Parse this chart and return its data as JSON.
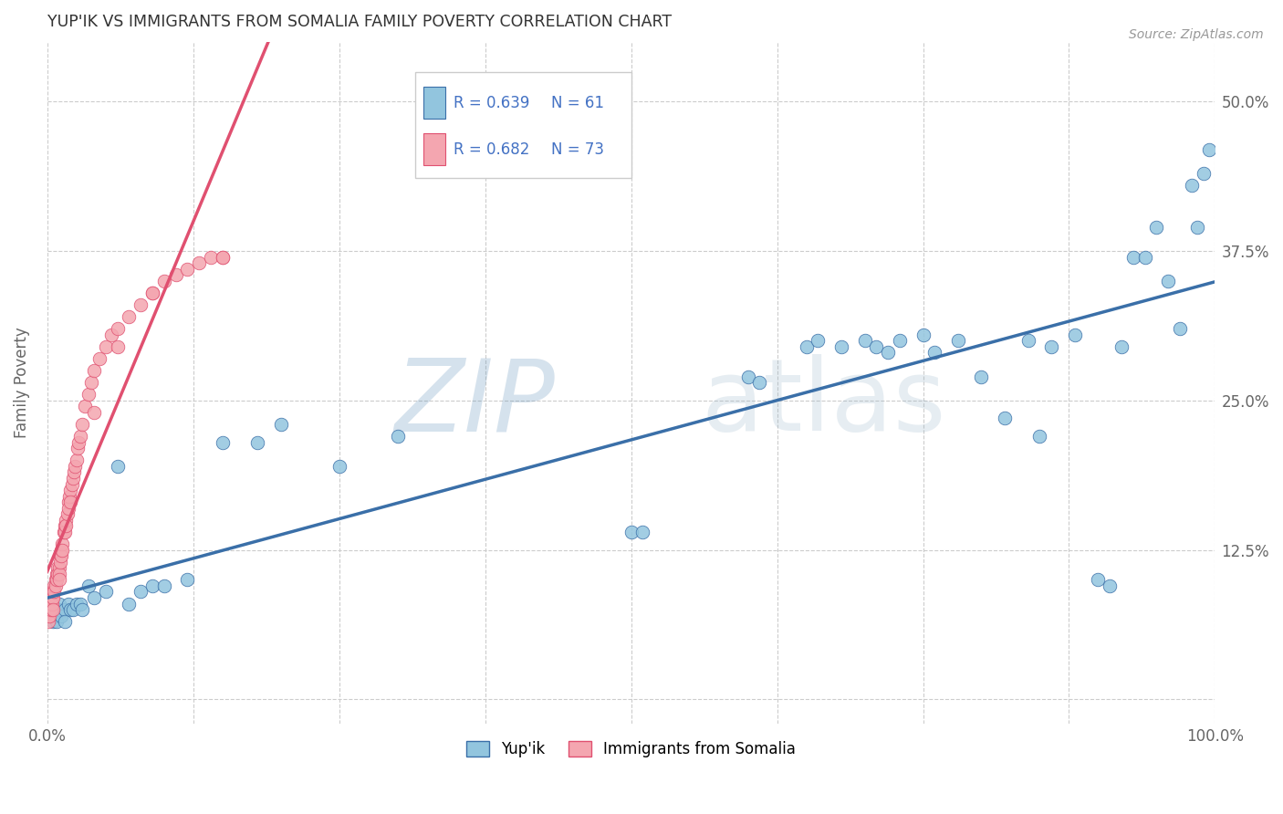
{
  "title": "YUP'IK VS IMMIGRANTS FROM SOMALIA FAMILY POVERTY CORRELATION CHART",
  "source": "Source: ZipAtlas.com",
  "ylabel": "Family Poverty",
  "xlim": [
    0,
    1.0
  ],
  "ylim": [
    -0.02,
    0.55
  ],
  "color_blue": "#92C5DE",
  "color_pink": "#F4A6B0",
  "color_blue_line": "#3A6FA8",
  "color_pink_line": "#E05070",
  "color_text_blue": "#4472C4",
  "legend_label_blue": "Yup'ik",
  "legend_label_pink": "Immigrants from Somalia",
  "blue_x": [
    0.003,
    0.005,
    0.007,
    0.008,
    0.01,
    0.01,
    0.012,
    0.015,
    0.015,
    0.018,
    0.02,
    0.022,
    0.025,
    0.028,
    0.03,
    0.035,
    0.04,
    0.05,
    0.06,
    0.07,
    0.08,
    0.09,
    0.1,
    0.12,
    0.15,
    0.18,
    0.2,
    0.25,
    0.3,
    0.5,
    0.51,
    0.6,
    0.61,
    0.65,
    0.66,
    0.68,
    0.7,
    0.71,
    0.72,
    0.73,
    0.75,
    0.76,
    0.78,
    0.8,
    0.82,
    0.84,
    0.85,
    0.86,
    0.88,
    0.9,
    0.91,
    0.92,
    0.93,
    0.94,
    0.95,
    0.96,
    0.97,
    0.98,
    0.985,
    0.99,
    0.995
  ],
  "blue_y": [
    0.075,
    0.065,
    0.07,
    0.065,
    0.075,
    0.08,
    0.07,
    0.075,
    0.065,
    0.08,
    0.075,
    0.075,
    0.08,
    0.08,
    0.075,
    0.095,
    0.085,
    0.09,
    0.195,
    0.08,
    0.09,
    0.095,
    0.095,
    0.1,
    0.215,
    0.215,
    0.23,
    0.195,
    0.22,
    0.14,
    0.14,
    0.27,
    0.265,
    0.295,
    0.3,
    0.295,
    0.3,
    0.295,
    0.29,
    0.3,
    0.305,
    0.29,
    0.3,
    0.27,
    0.235,
    0.3,
    0.22,
    0.295,
    0.305,
    0.1,
    0.095,
    0.295,
    0.37,
    0.37,
    0.395,
    0.35,
    0.31,
    0.43,
    0.395,
    0.44,
    0.46
  ],
  "pink_x": [
    0.001,
    0.001,
    0.001,
    0.002,
    0.002,
    0.002,
    0.003,
    0.003,
    0.003,
    0.004,
    0.004,
    0.004,
    0.005,
    0.005,
    0.005,
    0.006,
    0.006,
    0.007,
    0.007,
    0.008,
    0.008,
    0.009,
    0.009,
    0.01,
    0.01,
    0.01,
    0.011,
    0.011,
    0.012,
    0.012,
    0.013,
    0.013,
    0.014,
    0.015,
    0.015,
    0.016,
    0.016,
    0.017,
    0.018,
    0.018,
    0.019,
    0.02,
    0.021,
    0.022,
    0.023,
    0.024,
    0.025,
    0.026,
    0.027,
    0.028,
    0.03,
    0.032,
    0.035,
    0.038,
    0.04,
    0.045,
    0.05,
    0.055,
    0.06,
    0.07,
    0.08,
    0.09,
    0.1,
    0.11,
    0.12,
    0.13,
    0.14,
    0.15,
    0.02,
    0.04,
    0.06,
    0.09,
    0.15
  ],
  "pink_y": [
    0.075,
    0.07,
    0.065,
    0.08,
    0.075,
    0.07,
    0.085,
    0.08,
    0.075,
    0.09,
    0.085,
    0.08,
    0.09,
    0.085,
    0.075,
    0.095,
    0.09,
    0.1,
    0.095,
    0.105,
    0.1,
    0.11,
    0.105,
    0.11,
    0.105,
    0.1,
    0.12,
    0.115,
    0.125,
    0.12,
    0.13,
    0.125,
    0.14,
    0.145,
    0.14,
    0.15,
    0.145,
    0.155,
    0.165,
    0.16,
    0.17,
    0.175,
    0.18,
    0.185,
    0.19,
    0.195,
    0.2,
    0.21,
    0.215,
    0.22,
    0.23,
    0.245,
    0.255,
    0.265,
    0.275,
    0.285,
    0.295,
    0.305,
    0.31,
    0.32,
    0.33,
    0.34,
    0.35,
    0.355,
    0.36,
    0.365,
    0.37,
    0.37,
    0.165,
    0.24,
    0.295,
    0.34,
    0.37
  ]
}
